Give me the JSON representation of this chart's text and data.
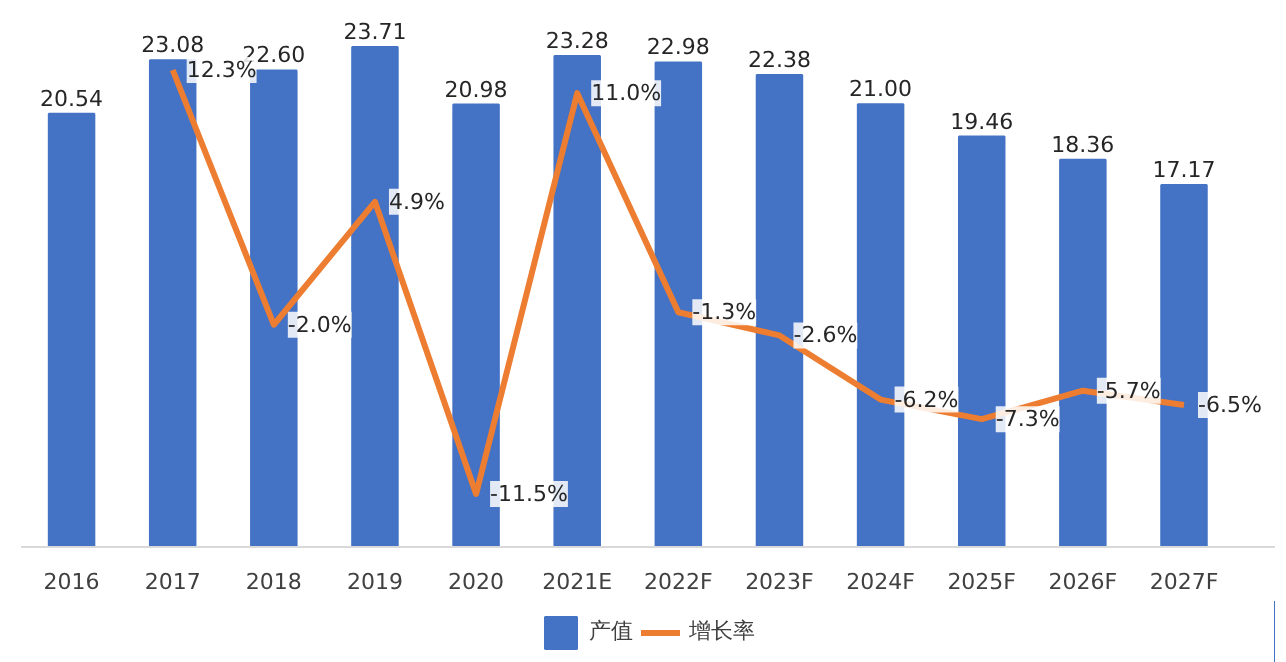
{
  "chart_data": {
    "type": "bar",
    "categories": [
      "2016",
      "2017",
      "2018",
      "2019",
      "2020",
      "2021E",
      "2022F",
      "2023F",
      "2024F",
      "2025F",
      "2026F",
      "2027F"
    ],
    "series": [
      {
        "name": "产值",
        "color": "#4472c4",
        "values": [
          20.54,
          23.08,
          22.6,
          23.71,
          20.98,
          23.28,
          22.98,
          22.38,
          21.0,
          19.46,
          18.36,
          17.17
        ],
        "value_labels": [
          "20.54",
          "23.08",
          "22.60",
          "23.71",
          "20.98",
          "23.28",
          "22.98",
          "22.38",
          "21.00",
          "19.46",
          "18.36",
          "17.17"
        ]
      },
      {
        "name": "增长率",
        "type": "line",
        "axis": "y2",
        "color": "#ed7d31",
        "values": [
          null,
          12.3,
          -2.0,
          4.9,
          -11.5,
          11.0,
          -1.3,
          -2.6,
          -6.2,
          -7.3,
          -5.7,
          -6.5
        ],
        "value_labels": [
          null,
          "12.3%",
          "-2.0%",
          "4.9%",
          "-11.5%",
          "11.0%",
          "-1.3%",
          "-2.6%",
          "-6.2%",
          "-7.3%",
          "-5.7%",
          "-6.5%"
        ]
      }
    ],
    "legend": "bottom",
    "tick_labels": "x"
  }
}
